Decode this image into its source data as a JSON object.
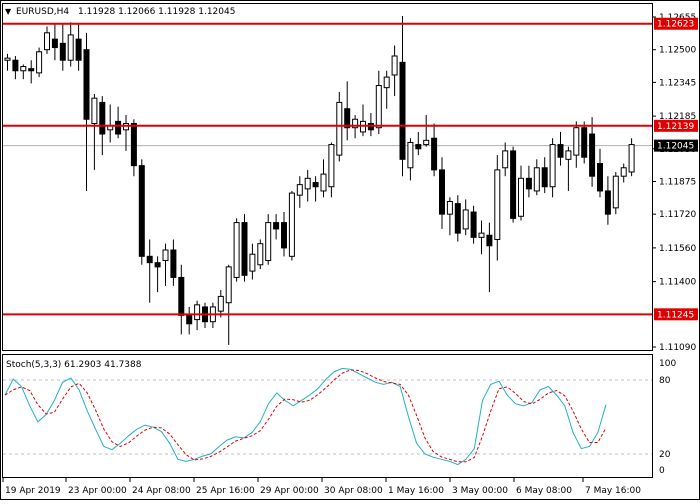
{
  "symbol_header": {
    "symbol": "EURUSD,H4",
    "ohlc": "1.11928 1.12066 1.11928 1.12045",
    "arrow_glyph": "▼"
  },
  "price_axis": {
    "ticks": [
      "1.12655",
      "1.12500",
      "1.12345",
      "1.12185",
      "1.12030",
      "1.11875",
      "1.11720",
      "1.11560",
      "1.11400",
      "1.11090"
    ],
    "tick_values": [
      1.12655,
      1.125,
      1.12345,
      1.12185,
      1.1203,
      1.11875,
      1.1172,
      1.1156,
      1.114,
      1.1109
    ]
  },
  "level_labels": {
    "top": "1.12623",
    "mid": "1.12139",
    "bottom": "1.11245",
    "current": "1.12045"
  },
  "time_axis": {
    "labels": [
      "19 Apr 2019",
      "23 Apr 00:00",
      "24 Apr 08:00",
      "25 Apr 16:00",
      "29 Apr 00:00",
      "30 Apr 08:00",
      "1 May 16:00",
      "3 May 00:00",
      "6 May 08:00",
      "7 May 16:00"
    ]
  },
  "stochastic": {
    "label": "Stoch(5,3,3) 61.2903 41.7388",
    "axis_ticks": [
      "100",
      "80",
      "20",
      "0"
    ],
    "axis_values": [
      100,
      80,
      20,
      0
    ]
  },
  "colors": {
    "level_line": "#e00000",
    "level_label_bg": "#e00000",
    "current_label_bg": "#000000",
    "stoch_main": "#20b2c8",
    "stoch_signal": "#e00000",
    "candle": "#000000"
  },
  "chart_data": {
    "type": "candlestick",
    "price_range": [
      1.1109,
      1.12655
    ],
    "horizontal_levels": [
      1.12623,
      1.12139,
      1.11245
    ],
    "current_price": 1.12045,
    "candles": [
      {
        "o": 1.1245,
        "h": 1.1248,
        "l": 1.124,
        "c": 1.1246
      },
      {
        "o": 1.1245,
        "h": 1.1247,
        "l": 1.1236,
        "c": 1.124
      },
      {
        "o": 1.124,
        "h": 1.1243,
        "l": 1.1236,
        "c": 1.1242
      },
      {
        "o": 1.1241,
        "h": 1.1245,
        "l": 1.1234,
        "c": 1.124
      },
      {
        "o": 1.1239,
        "h": 1.1251,
        "l": 1.1237,
        "c": 1.1249
      },
      {
        "o": 1.125,
        "h": 1.1261,
        "l": 1.1248,
        "c": 1.1258
      },
      {
        "o": 1.1255,
        "h": 1.1262,
        "l": 1.1245,
        "c": 1.1251
      },
      {
        "o": 1.1253,
        "h": 1.1262,
        "l": 1.124,
        "c": 1.1245
      },
      {
        "o": 1.1245,
        "h": 1.1263,
        "l": 1.1242,
        "c": 1.1257
      },
      {
        "o": 1.1255,
        "h": 1.1262,
        "l": 1.124,
        "c": 1.1245
      },
      {
        "o": 1.125,
        "h": 1.1258,
        "l": 1.1183,
        "c": 1.1217
      },
      {
        "o": 1.1215,
        "h": 1.1229,
        "l": 1.1193,
        "c": 1.1227
      },
      {
        "o": 1.1225,
        "h": 1.1228,
        "l": 1.12,
        "c": 1.121
      },
      {
        "o": 1.1212,
        "h": 1.1224,
        "l": 1.1206,
        "c": 1.1214
      },
      {
        "o": 1.1216,
        "h": 1.1223,
        "l": 1.1208,
        "c": 1.121
      },
      {
        "o": 1.1212,
        "h": 1.1219,
        "l": 1.1202,
        "c": 1.1215
      },
      {
        "o": 1.1215,
        "h": 1.1217,
        "l": 1.119,
        "c": 1.1195
      },
      {
        "o": 1.1195,
        "h": 1.1198,
        "l": 1.1148,
        "c": 1.1152
      },
      {
        "o": 1.1152,
        "h": 1.116,
        "l": 1.113,
        "c": 1.1149
      },
      {
        "o": 1.1149,
        "h": 1.1152,
        "l": 1.1135,
        "c": 1.1147
      },
      {
        "o": 1.115,
        "h": 1.1158,
        "l": 1.1138,
        "c": 1.1155
      },
      {
        "o": 1.1155,
        "h": 1.116,
        "l": 1.1138,
        "c": 1.1142
      },
      {
        "o": 1.1142,
        "h": 1.1148,
        "l": 1.1115,
        "c": 1.1124
      },
      {
        "o": 1.1124,
        "h": 1.1128,
        "l": 1.1115,
        "c": 1.112
      },
      {
        "o": 1.1122,
        "h": 1.1131,
        "l": 1.1117,
        "c": 1.1129
      },
      {
        "o": 1.1128,
        "h": 1.113,
        "l": 1.1118,
        "c": 1.1121
      },
      {
        "o": 1.1121,
        "h": 1.113,
        "l": 1.1118,
        "c": 1.1128
      },
      {
        "o": 1.1126,
        "h": 1.1136,
        "l": 1.1123,
        "c": 1.1133
      },
      {
        "o": 1.113,
        "h": 1.1148,
        "l": 1.111,
        "c": 1.1147
      },
      {
        "o": 1.1142,
        "h": 1.117,
        "l": 1.114,
        "c": 1.1168
      },
      {
        "o": 1.1168,
        "h": 1.1172,
        "l": 1.114,
        "c": 1.1143
      },
      {
        "o": 1.1145,
        "h": 1.1158,
        "l": 1.1141,
        "c": 1.1153
      },
      {
        "o": 1.1148,
        "h": 1.116,
        "l": 1.1146,
        "c": 1.1158
      },
      {
        "o": 1.115,
        "h": 1.1172,
        "l": 1.1148,
        "c": 1.1168
      },
      {
        "o": 1.1168,
        "h": 1.1172,
        "l": 1.116,
        "c": 1.1165
      },
      {
        "o": 1.1168,
        "h": 1.1173,
        "l": 1.1152,
        "c": 1.1156
      },
      {
        "o": 1.1152,
        "h": 1.1183,
        "l": 1.115,
        "c": 1.1182
      },
      {
        "o": 1.1181,
        "h": 1.119,
        "l": 1.1175,
        "c": 1.1186
      },
      {
        "o": 1.1184,
        "h": 1.1193,
        "l": 1.1178,
        "c": 1.1189
      },
      {
        "o": 1.1187,
        "h": 1.119,
        "l": 1.1178,
        "c": 1.1185
      },
      {
        "o": 1.1183,
        "h": 1.1198,
        "l": 1.118,
        "c": 1.1191
      },
      {
        "o": 1.1185,
        "h": 1.1206,
        "l": 1.118,
        "c": 1.1205
      },
      {
        "o": 1.12,
        "h": 1.123,
        "l": 1.1197,
        "c": 1.1225
      },
      {
        "o": 1.1222,
        "h": 1.1235,
        "l": 1.1207,
        "c": 1.1213
      },
      {
        "o": 1.1213,
        "h": 1.1219,
        "l": 1.1208,
        "c": 1.1217
      },
      {
        "o": 1.1211,
        "h": 1.1224,
        "l": 1.1209,
        "c": 1.1216
      },
      {
        "o": 1.1215,
        "h": 1.122,
        "l": 1.1209,
        "c": 1.1212
      },
      {
        "o": 1.1213,
        "h": 1.124,
        "l": 1.121,
        "c": 1.1233
      },
      {
        "o": 1.1232,
        "h": 1.124,
        "l": 1.1222,
        "c": 1.1237
      },
      {
        "o": 1.1238,
        "h": 1.1252,
        "l": 1.1228,
        "c": 1.1247
      },
      {
        "o": 1.1244,
        "h": 1.1266,
        "l": 1.119,
        "c": 1.1198
      },
      {
        "o": 1.1194,
        "h": 1.1208,
        "l": 1.1188,
        "c": 1.1206
      },
      {
        "o": 1.1205,
        "h": 1.1211,
        "l": 1.12,
        "c": 1.1203
      },
      {
        "o": 1.1205,
        "h": 1.1219,
        "l": 1.1204,
        "c": 1.1207
      },
      {
        "o": 1.1208,
        "h": 1.1215,
        "l": 1.119,
        "c": 1.1193
      },
      {
        "o": 1.1193,
        "h": 1.1199,
        "l": 1.1165,
        "c": 1.1172
      },
      {
        "o": 1.1172,
        "h": 1.118,
        "l": 1.1162,
        "c": 1.1178
      },
      {
        "o": 1.1177,
        "h": 1.1181,
        "l": 1.1159,
        "c": 1.1163
      },
      {
        "o": 1.1165,
        "h": 1.1179,
        "l": 1.1162,
        "c": 1.1174
      },
      {
        "o": 1.1173,
        "h": 1.1176,
        "l": 1.1158,
        "c": 1.1161
      },
      {
        "o": 1.1161,
        "h": 1.1169,
        "l": 1.1153,
        "c": 1.1163
      },
      {
        "o": 1.1162,
        "h": 1.1168,
        "l": 1.1135,
        "c": 1.1157
      },
      {
        "o": 1.116,
        "h": 1.12,
        "l": 1.115,
        "c": 1.1193
      },
      {
        "o": 1.1194,
        "h": 1.1206,
        "l": 1.119,
        "c": 1.1202
      },
      {
        "o": 1.1202,
        "h": 1.1204,
        "l": 1.1168,
        "c": 1.117
      },
      {
        "o": 1.1171,
        "h": 1.1195,
        "l": 1.1169,
        "c": 1.1189
      },
      {
        "o": 1.1189,
        "h": 1.1195,
        "l": 1.118,
        "c": 1.1184
      },
      {
        "o": 1.1183,
        "h": 1.1198,
        "l": 1.1181,
        "c": 1.1194
      },
      {
        "o": 1.1194,
        "h": 1.1199,
        "l": 1.1182,
        "c": 1.1185
      },
      {
        "o": 1.1185,
        "h": 1.1208,
        "l": 1.118,
        "c": 1.1205
      },
      {
        "o": 1.1205,
        "h": 1.1211,
        "l": 1.1195,
        "c": 1.1199
      },
      {
        "o": 1.1198,
        "h": 1.1204,
        "l": 1.1183,
        "c": 1.1202
      },
      {
        "o": 1.12,
        "h": 1.1216,
        "l": 1.1194,
        "c": 1.1213
      },
      {
        "o": 1.1213,
        "h": 1.1216,
        "l": 1.1196,
        "c": 1.1199
      },
      {
        "o": 1.121,
        "h": 1.1218,
        "l": 1.1185,
        "c": 1.119
      },
      {
        "o": 1.1196,
        "h": 1.1203,
        "l": 1.118,
        "c": 1.1183
      },
      {
        "o": 1.1183,
        "h": 1.119,
        "l": 1.1167,
        "c": 1.1172
      },
      {
        "o": 1.1175,
        "h": 1.1192,
        "l": 1.1172,
        "c": 1.119
      },
      {
        "o": 1.119,
        "h": 1.1196,
        "l": 1.1187,
        "c": 1.1194
      },
      {
        "o": 1.1192,
        "h": 1.1208,
        "l": 1.119,
        "c": 1.1205
      }
    ],
    "stoch_main": [
      70,
      85,
      78,
      60,
      45,
      52,
      65,
      82,
      86,
      75,
      55,
      38,
      22,
      19,
      25,
      32,
      38,
      42,
      40,
      36,
      25,
      10,
      8,
      10,
      13,
      15,
      22,
      28,
      31,
      30,
      35,
      45,
      62,
      72,
      65,
      60,
      65,
      70,
      76,
      85,
      92,
      95,
      94,
      90,
      86,
      82,
      80,
      82,
      78,
      50,
      25,
      15,
      12,
      10,
      8,
      5,
      10,
      20,
      65,
      80,
      83,
      70,
      62,
      60,
      63,
      75,
      78,
      70,
      60,
      35,
      20,
      22,
      35,
      61
    ]
  }
}
